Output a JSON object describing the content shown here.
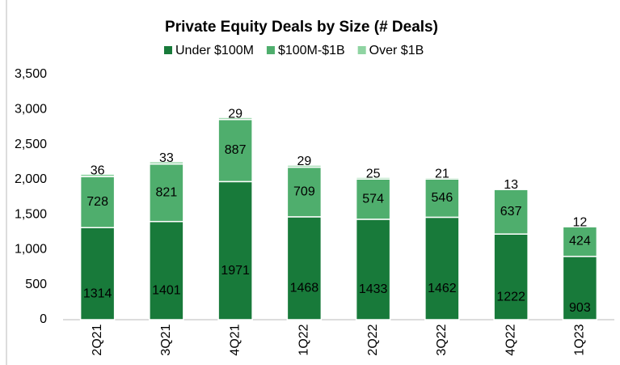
{
  "chart_data": {
    "type": "stacked_bar",
    "title": "Private Equity Deals by Size (# Deals)",
    "categories": [
      "2Q21",
      "3Q21",
      "4Q21",
      "1Q22",
      "2Q22",
      "3Q22",
      "4Q22",
      "1Q23"
    ],
    "series": [
      {
        "name": "Under $100M",
        "color": "#187a3a",
        "values": [
          1314,
          1401,
          1971,
          1468,
          1433,
          1462,
          1222,
          903
        ]
      },
      {
        "name": "$100M-$1B",
        "color": "#4fae6d",
        "values": [
          728,
          821,
          887,
          709,
          574,
          546,
          637,
          424
        ]
      },
      {
        "name": "Over $1B",
        "color": "#8fd4a2",
        "values": [
          36,
          33,
          29,
          29,
          25,
          21,
          13,
          12
        ]
      }
    ],
    "ylim": [
      0,
      3500
    ],
    "yticks": [
      0,
      500,
      {
        "value": 1000,
        "label": "1,000"
      },
      {
        "value": 1500,
        "label": "1,500"
      },
      {
        "value": 2000,
        "label": "2,000"
      },
      {
        "value": 2500,
        "label": "2,500"
      },
      {
        "value": 3000,
        "label": "3,000"
      },
      {
        "value": 3500,
        "label": "3,500"
      }
    ],
    "legend": "top"
  }
}
